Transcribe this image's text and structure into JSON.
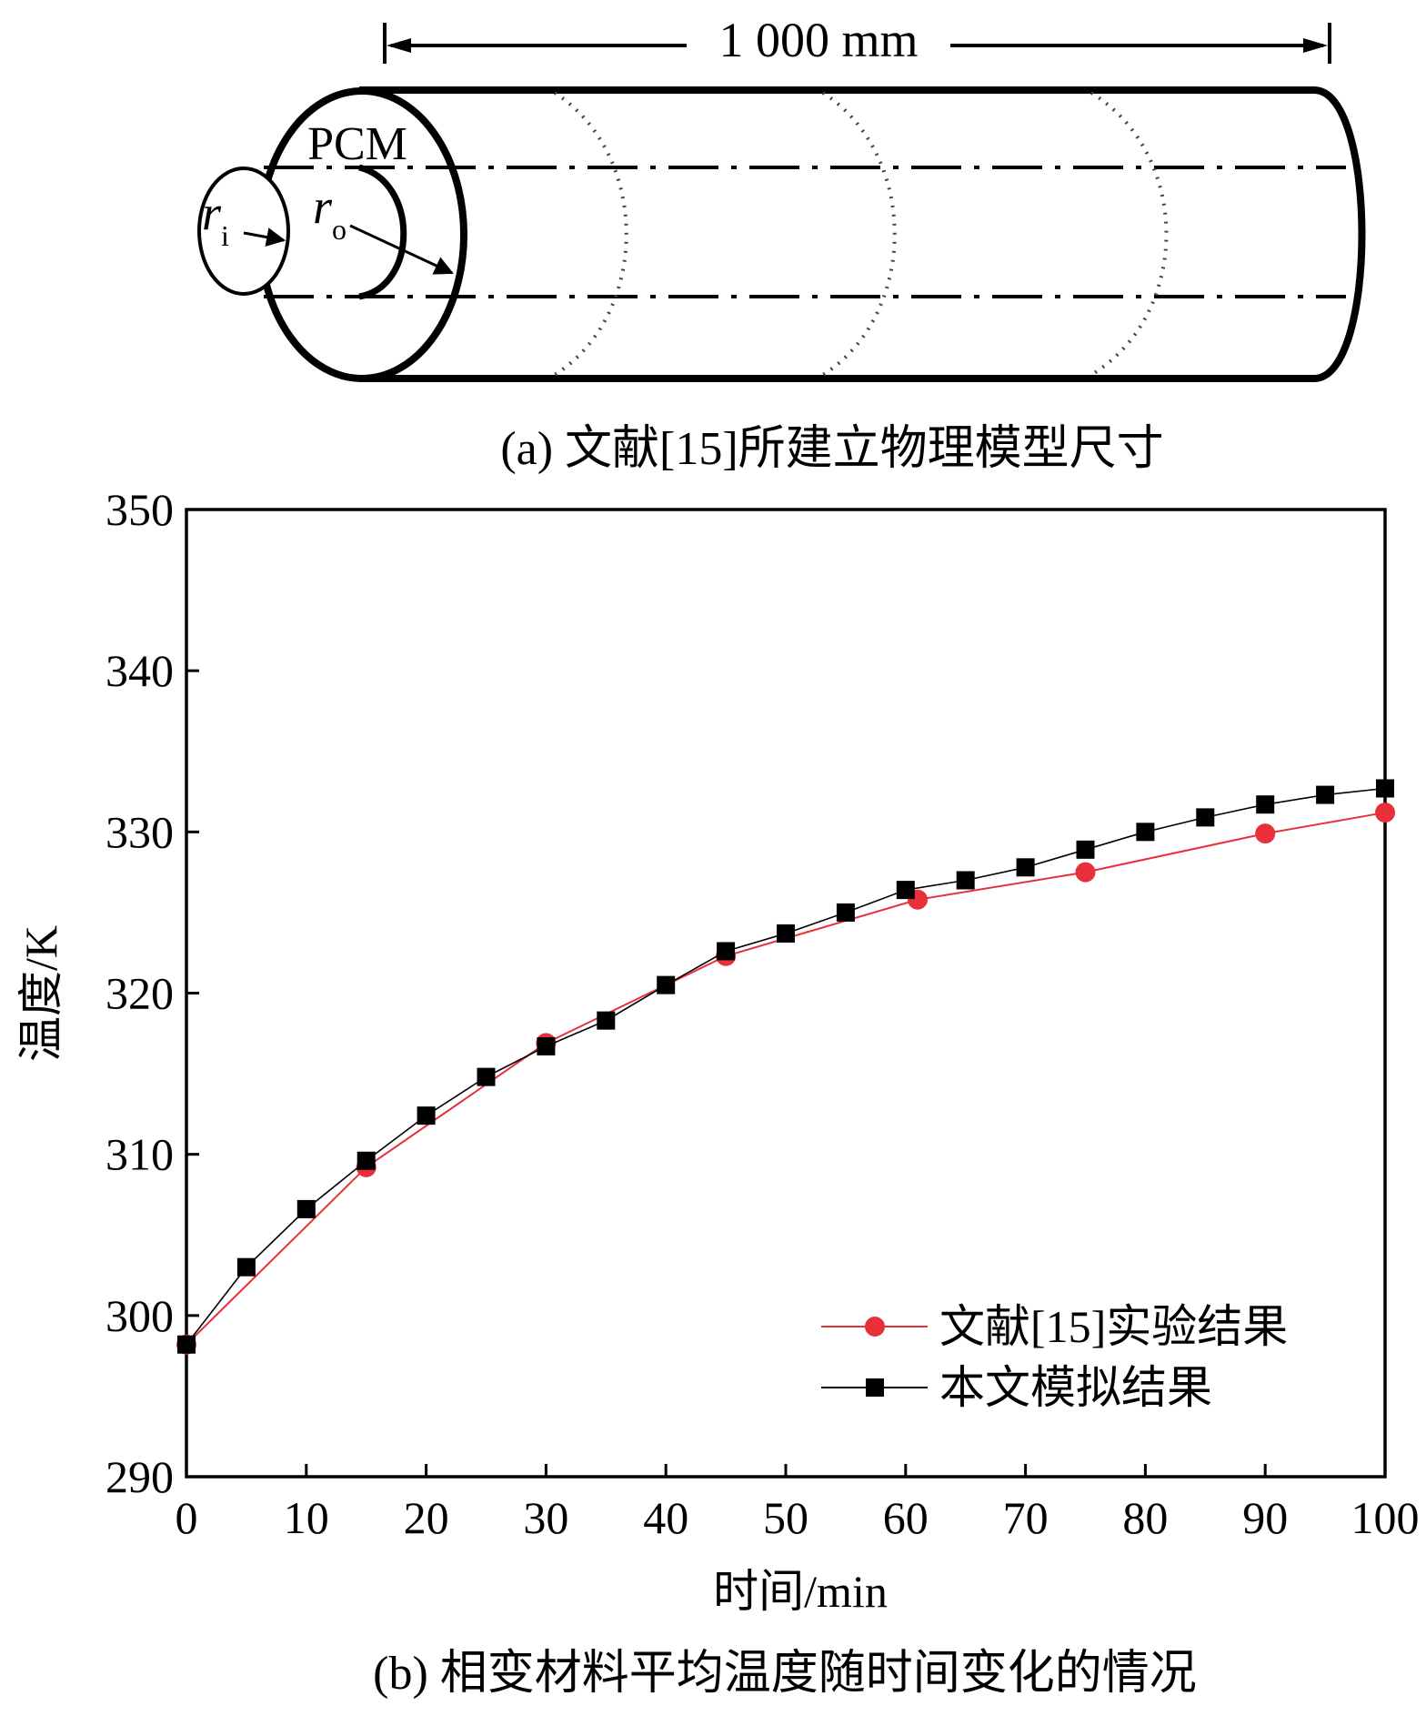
{
  "diagram": {
    "dimension_label": "1 000 mm",
    "pcm_label": "PCM",
    "inner_radius": {
      "symbol": "r",
      "subscript": "i"
    },
    "outer_radius": {
      "symbol": "r",
      "subscript": "o"
    },
    "caption": "(a) 文献[15]所建立物理模型尺寸"
  },
  "chart_data": {
    "type": "line",
    "title": "",
    "xlabel": "时间/min",
    "ylabel": "温度/K",
    "xlim": [
      0,
      100
    ],
    "ylim": [
      290,
      350
    ],
    "x_ticks": [
      "0",
      "10",
      "20",
      "30",
      "40",
      "50",
      "60",
      "70",
      "80",
      "90",
      "100"
    ],
    "y_ticks": [
      "290",
      "300",
      "310",
      "320",
      "330",
      "340",
      "350"
    ],
    "grid": false,
    "legend_position": "bottom-right",
    "series": [
      {
        "name": "文献[15]实验结果",
        "color": "#e8303a",
        "marker": "circle",
        "points": [
          [
            0,
            298.2
          ],
          [
            15,
            309.2
          ],
          [
            30,
            316.9
          ],
          [
            45,
            322.3
          ],
          [
            61,
            325.8
          ],
          [
            75,
            327.5
          ],
          [
            90,
            329.9
          ],
          [
            100,
            331.2
          ]
        ]
      },
      {
        "name": "本文模拟结果",
        "color": "#000000",
        "marker": "square",
        "points": [
          [
            0,
            298.2
          ],
          [
            5,
            303.0
          ],
          [
            10,
            306.6
          ],
          [
            15,
            309.6
          ],
          [
            20,
            312.4
          ],
          [
            25,
            314.8
          ],
          [
            30,
            316.7
          ],
          [
            35,
            318.3
          ],
          [
            40,
            320.5
          ],
          [
            45,
            322.6
          ],
          [
            50,
            323.7
          ],
          [
            55,
            325.0
          ],
          [
            60,
            326.4
          ],
          [
            65,
            327.0
          ],
          [
            70,
            327.8
          ],
          [
            75,
            328.9
          ],
          [
            80,
            330.0
          ],
          [
            85,
            330.9
          ],
          [
            90,
            331.7
          ],
          [
            95,
            332.3
          ],
          [
            100,
            332.7
          ]
        ]
      }
    ],
    "caption": "(b) 相变材料平均温度随时间变化的情况"
  }
}
